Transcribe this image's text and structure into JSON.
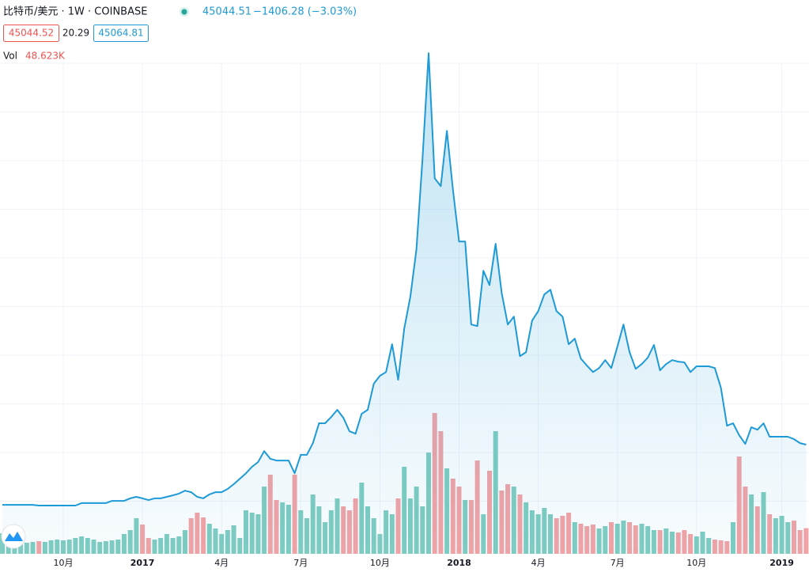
{
  "header": {
    "symbol": "比特币/美元 · 1W · COINBASE",
    "last": "45044.51",
    "change": "−1406.28 (−3.03%)",
    "bid": "45044.52",
    "spread": "20.29",
    "ask": "45064.81",
    "volume_title": "Vol",
    "volume_value": "48.623K"
  },
  "chart_data": {
    "type": "line",
    "categories": [
      null,
      null,
      null,
      null,
      null,
      null,
      null,
      null,
      null,
      null,
      "10月",
      null,
      null,
      null,
      null,
      null,
      null,
      null,
      null,
      null,
      null,
      null,
      null,
      "2017",
      null,
      null,
      null,
      null,
      null,
      null,
      null,
      null,
      null,
      null,
      null,
      null,
      "4月",
      null,
      null,
      null,
      null,
      null,
      null,
      null,
      null,
      null,
      null,
      null,
      null,
      "7月",
      null,
      null,
      null,
      null,
      null,
      null,
      null,
      null,
      null,
      null,
      null,
      null,
      "10月",
      null,
      null,
      null,
      null,
      null,
      null,
      null,
      null,
      null,
      null,
      null,
      null,
      "2018",
      null,
      null,
      null,
      null,
      null,
      null,
      null,
      null,
      null,
      null,
      null,
      null,
      "4月",
      null,
      null,
      null,
      null,
      null,
      null,
      null,
      null,
      null,
      null,
      null,
      null,
      "7月",
      null,
      null,
      null,
      null,
      null,
      null,
      null,
      null,
      null,
      null,
      null,
      null,
      "10月",
      null,
      null,
      null,
      null,
      null,
      null,
      null,
      null,
      null,
      null,
      null,
      null,
      null,
      "2019",
      null,
      null,
      null,
      null
    ],
    "ylim": [
      0,
      21000
    ],
    "series": [
      {
        "color": "#1e9ad6",
        "values": [
          1970,
          1970,
          1970,
          1970,
          1970,
          1970,
          1940,
          1940,
          1940,
          1940,
          1940,
          1940,
          1940,
          2040,
          2040,
          2040,
          2040,
          2040,
          2130,
          2130,
          2130,
          2230,
          2290,
          2230,
          2160,
          2230,
          2230,
          2290,
          2350,
          2420,
          2540,
          2480,
          2290,
          2230,
          2390,
          2480,
          2480,
          2610,
          2800,
          3020,
          3240,
          3500,
          3690,
          4130,
          3820,
          3750,
          3750,
          3750,
          3240,
          3980,
          3980,
          4450,
          5250,
          5250,
          5500,
          5790,
          5470,
          4930,
          4830,
          5630,
          5790,
          6840,
          7160,
          7310,
          8430,
          7000,
          9060,
          10340,
          12240,
          15900,
          20130,
          15100,
          14790,
          17010,
          14630,
          12560,
          12560,
          9220,
          9160,
          11380,
          10810,
          12470,
          10490,
          9220,
          9540,
          7950,
          8110,
          9380,
          9760,
          10430,
          10620,
          9760,
          9540,
          8430,
          8650,
          7850,
          7570,
          7310,
          7470,
          7790,
          7470,
          8330,
          9220,
          8110,
          7440,
          7630,
          7890,
          8400,
          7380,
          7630,
          7790,
          7730,
          7700,
          7310,
          7540,
          7540,
          7540,
          7470,
          6680,
          5150,
          5250,
          4770,
          4420,
          5090,
          4990,
          5250,
          4710,
          4710,
          4710,
          4710,
          4610,
          4450,
          4390
        ]
      }
    ],
    "volume": {
      "up_color": "#80cdc1",
      "down_color": "#f4a3a5",
      "ylim": [
        0,
        300000
      ],
      "values": [
        39000,
        27000,
        24000,
        22500,
        21000,
        22500,
        24000,
        22500,
        25500,
        27000,
        25500,
        27000,
        30000,
        33000,
        30000,
        27000,
        22500,
        24000,
        25500,
        27000,
        37500,
        45000,
        67500,
        55500,
        30000,
        27000,
        30000,
        37500,
        30000,
        33000,
        45000,
        67500,
        78000,
        69000,
        57000,
        48000,
        37500,
        45000,
        54000,
        30000,
        82500,
        78000,
        75000,
        127500,
        150000,
        102000,
        97500,
        93000,
        150000,
        82500,
        67500,
        112500,
        90000,
        60000,
        82500,
        105000,
        90000,
        82500,
        105000,
        135000,
        90000,
        67500,
        37500,
        82500,
        75000,
        105000,
        165000,
        105000,
        127500,
        90000,
        192000,
        267000,
        232500,
        162000,
        142500,
        127500,
        102000,
        102000,
        177000,
        75000,
        157500,
        232500,
        120000,
        132000,
        127500,
        112500,
        97500,
        82500,
        75000,
        87000,
        75000,
        67500,
        72000,
        78000,
        60000,
        57000,
        52500,
        55500,
        48000,
        52500,
        60000,
        57000,
        63000,
        60000,
        54000,
        57000,
        52500,
        45000,
        45000,
        48000,
        42000,
        40500,
        45000,
        37500,
        33000,
        42000,
        30000,
        27000,
        25500,
        24000,
        60000,
        184500,
        127500,
        112500,
        90000,
        117000,
        75000,
        67500,
        72000,
        60000,
        63000,
        45000,
        48623
      ]
    }
  }
}
